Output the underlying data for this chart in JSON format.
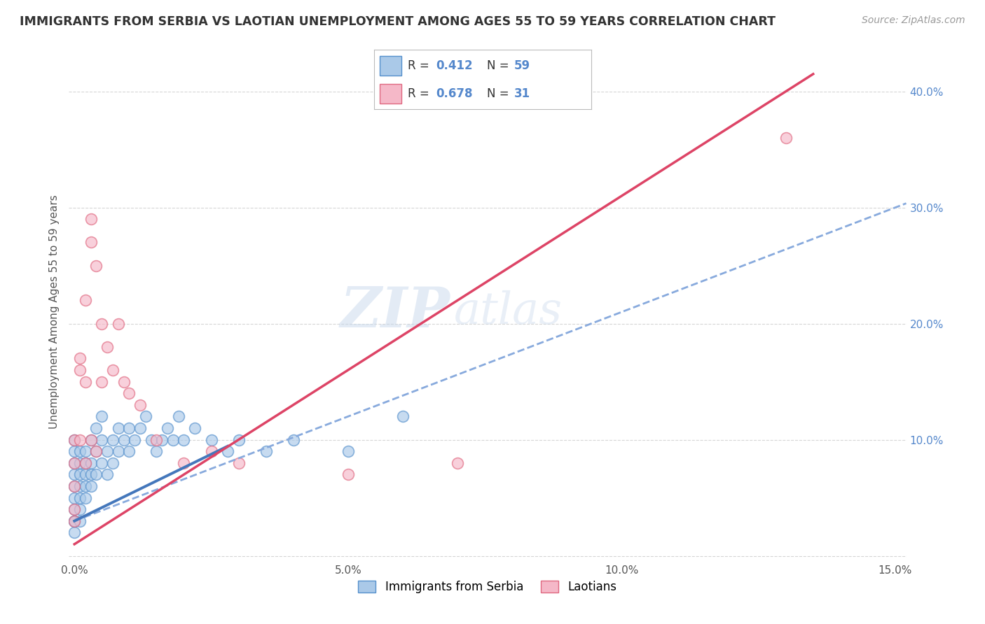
{
  "title": "IMMIGRANTS FROM SERBIA VS LAOTIAN UNEMPLOYMENT AMONG AGES 55 TO 59 YEARS CORRELATION CHART",
  "source": "Source: ZipAtlas.com",
  "ylabel": "Unemployment Among Ages 55 to 59 years",
  "legend_labels": [
    "Immigrants from Serbia",
    "Laotians"
  ],
  "r_serbia": 0.412,
  "n_serbia": 59,
  "r_laotian": 0.678,
  "n_laotian": 31,
  "xlim": [
    -0.001,
    0.152
  ],
  "ylim": [
    -0.005,
    0.425
  ],
  "xticks": [
    0.0,
    0.05,
    0.1,
    0.15
  ],
  "yticks": [
    0.0,
    0.1,
    0.2,
    0.3,
    0.4
  ],
  "xtick_labels": [
    "0.0%",
    "5.0%",
    "10.0%",
    "15.0%"
  ],
  "ytick_labels": [
    "",
    "10.0%",
    "20.0%",
    "30.0%",
    "40.0%"
  ],
  "color_serbia": "#aac9e8",
  "color_laotian": "#f5b8c8",
  "edge_color_serbia": "#5590cc",
  "edge_color_laotian": "#e06880",
  "line_color_serbia_solid": "#4477bb",
  "line_color_serbia_dash": "#88aadd",
  "line_color_laotian": "#dd4466",
  "serbia_x": [
    0.0,
    0.0,
    0.0,
    0.0,
    0.0,
    0.0,
    0.0,
    0.0,
    0.0,
    0.0,
    0.001,
    0.001,
    0.001,
    0.001,
    0.001,
    0.001,
    0.001,
    0.002,
    0.002,
    0.002,
    0.002,
    0.002,
    0.003,
    0.003,
    0.003,
    0.003,
    0.004,
    0.004,
    0.004,
    0.005,
    0.005,
    0.005,
    0.006,
    0.006,
    0.007,
    0.007,
    0.008,
    0.008,
    0.009,
    0.01,
    0.01,
    0.011,
    0.012,
    0.013,
    0.014,
    0.015,
    0.016,
    0.017,
    0.018,
    0.019,
    0.02,
    0.022,
    0.025,
    0.028,
    0.03,
    0.035,
    0.04,
    0.05,
    0.06
  ],
  "serbia_y": [
    0.02,
    0.03,
    0.04,
    0.05,
    0.06,
    0.07,
    0.08,
    0.09,
    0.1,
    0.03,
    0.04,
    0.06,
    0.08,
    0.05,
    0.07,
    0.09,
    0.03,
    0.05,
    0.07,
    0.09,
    0.06,
    0.08,
    0.06,
    0.08,
    0.1,
    0.07,
    0.07,
    0.09,
    0.11,
    0.08,
    0.1,
    0.12,
    0.07,
    0.09,
    0.08,
    0.1,
    0.09,
    0.11,
    0.1,
    0.09,
    0.11,
    0.1,
    0.11,
    0.12,
    0.1,
    0.09,
    0.1,
    0.11,
    0.1,
    0.12,
    0.1,
    0.11,
    0.1,
    0.09,
    0.1,
    0.09,
    0.1,
    0.09,
    0.12
  ],
  "laotian_x": [
    0.0,
    0.0,
    0.0,
    0.0,
    0.0,
    0.001,
    0.001,
    0.001,
    0.002,
    0.002,
    0.002,
    0.003,
    0.003,
    0.003,
    0.004,
    0.004,
    0.005,
    0.005,
    0.006,
    0.007,
    0.008,
    0.009,
    0.01,
    0.012,
    0.015,
    0.02,
    0.025,
    0.03,
    0.05,
    0.07,
    0.13
  ],
  "laotian_y": [
    0.04,
    0.06,
    0.08,
    0.1,
    0.03,
    0.16,
    0.17,
    0.1,
    0.22,
    0.15,
    0.08,
    0.29,
    0.27,
    0.1,
    0.25,
    0.09,
    0.2,
    0.15,
    0.18,
    0.16,
    0.2,
    0.15,
    0.14,
    0.13,
    0.1,
    0.08,
    0.09,
    0.08,
    0.07,
    0.08,
    0.36
  ],
  "watermark_zip": "ZIP",
  "watermark_atlas": "atlas",
  "background_color": "#ffffff",
  "grid_color": "#cccccc"
}
